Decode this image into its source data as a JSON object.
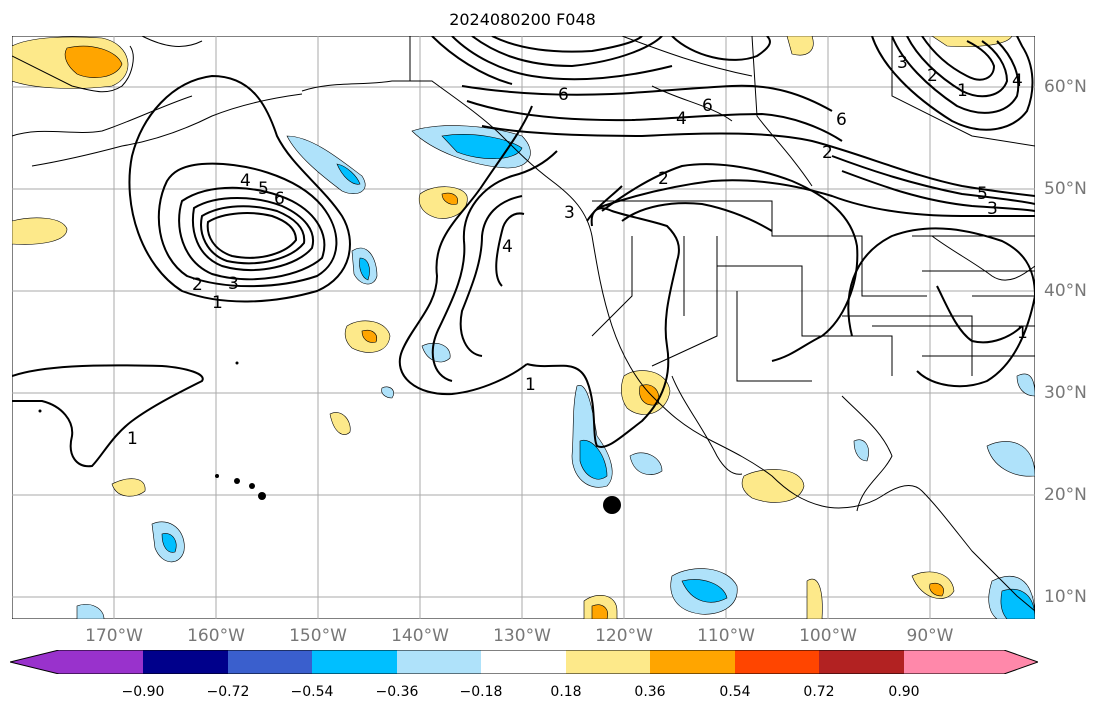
{
  "title": "2024080200 F048",
  "lon_labels": [
    "170°W",
    "160°W",
    "150°W",
    "140°W",
    "130°W",
    "120°W",
    "110°W",
    "100°W",
    "90°W"
  ],
  "lat_labels": [
    "60°N",
    "50°N",
    "40°N",
    "30°N",
    "20°N",
    "10°N"
  ],
  "contour_labels": {
    "aleutian_low": [
      "1",
      "2",
      "3",
      "4",
      "5",
      "6"
    ],
    "west_coast": [
      "1",
      "4",
      "3",
      "2"
    ],
    "north": [
      "6",
      "4",
      "6",
      "6",
      "2"
    ],
    "ne_canada": [
      "1",
      "2",
      "3",
      "4"
    ],
    "east": [
      "5",
      "3",
      "1"
    ],
    "central_pacific": "1"
  },
  "colorbar": {
    "ticks": [
      "−0.90",
      "−0.72",
      "−0.54",
      "−0.36",
      "−0.18",
      "0.18",
      "0.36",
      "0.54",
      "0.72",
      "0.90"
    ],
    "colors": [
      "#9932cc",
      "#00008b",
      "#3a5fcd",
      "#00bfff",
      "#afe2fa",
      "#ffffff",
      "#fde98a",
      "#ffa500",
      "#ff4500",
      "#b22222",
      "#ff88aa"
    ]
  }
}
